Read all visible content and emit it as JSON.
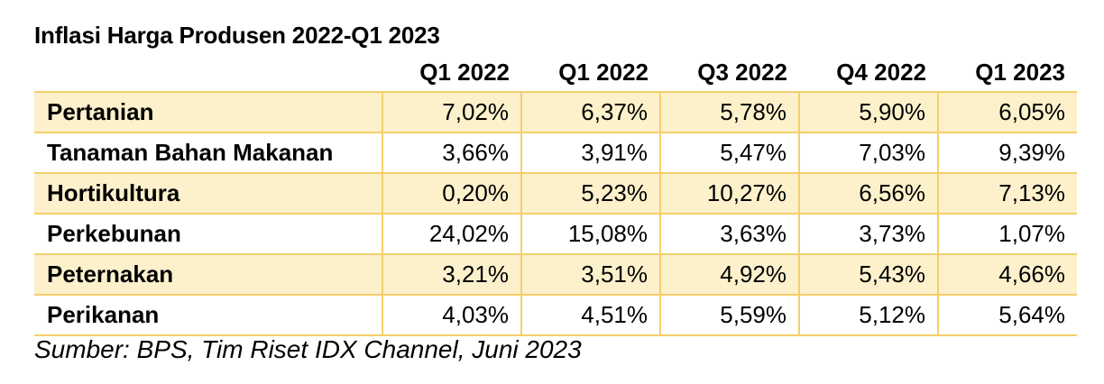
{
  "title": "Inflasi Harga Produsen 2022-Q1 2023",
  "source": "Sumber: BPS, Tim Riset IDX Channel, Juni 2023",
  "colors": {
    "row_shading": "#fdf1cc",
    "grid_lines": "#f3cf6c"
  },
  "chart_data": {
    "type": "table",
    "title": "Inflasi Harga Produsen 2022-Q1 2023",
    "columns": [
      "",
      "Q1 2022",
      "Q1 2022",
      "Q3 2022",
      "Q4 2022",
      "Q1 2023"
    ],
    "rows": [
      {
        "label": "Pertanian",
        "values": [
          "7,02%",
          "6,37%",
          "5,78%",
          "5,90%",
          "6,05%"
        ]
      },
      {
        "label": "Tanaman Bahan Makanan",
        "values": [
          "3,66%",
          "3,91%",
          "5,47%",
          "7,03%",
          "9,39%"
        ]
      },
      {
        "label": "Hortikultura",
        "values": [
          "0,20%",
          "5,23%",
          "10,27%",
          "6,56%",
          "7,13%"
        ]
      },
      {
        "label": "Perkebunan",
        "values": [
          "24,02%",
          "15,08%",
          "3,63%",
          "3,73%",
          "1,07%"
        ]
      },
      {
        "label": "Peternakan",
        "values": [
          "3,21%",
          "3,51%",
          "4,92%",
          "5,43%",
          "4,66%"
        ]
      },
      {
        "label": "Perikanan",
        "values": [
          "4,03%",
          "4,51%",
          "5,59%",
          "5,12%",
          "5,64%"
        ]
      }
    ]
  }
}
